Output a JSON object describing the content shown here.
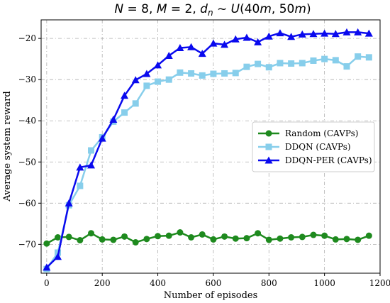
{
  "chart_data": {
    "type": "line",
    "title": "N = 8, M = 2, d_n ~ U(40m, 50m)",
    "xlabel": "Number of episodes",
    "ylabel": "Average system reward",
    "xlim": [
      -20,
      1200
    ],
    "ylim": [
      -77,
      -15.5
    ],
    "xticks": [
      0,
      200,
      400,
      600,
      800,
      1000,
      1200
    ],
    "yticks": [
      -70,
      -60,
      -50,
      -40,
      -30,
      -20
    ],
    "grid": true,
    "legend_position": "center-right",
    "x": [
      0,
      40,
      80,
      120,
      160,
      200,
      240,
      280,
      320,
      360,
      400,
      440,
      480,
      520,
      560,
      600,
      640,
      680,
      720,
      760,
      800,
      840,
      880,
      920,
      960,
      1000,
      1040,
      1080,
      1120,
      1160
    ],
    "series": [
      {
        "name": "Random (CAVPs)",
        "color": "#1e8a1e",
        "marker": "circle",
        "values": [
          -69.8,
          -68.3,
          -68.2,
          -69.0,
          -67.3,
          -68.8,
          -68.9,
          -68.1,
          -69.5,
          -68.7,
          -68.0,
          -67.9,
          -67.1,
          -68.3,
          -67.6,
          -68.8,
          -68.1,
          -68.6,
          -68.5,
          -67.3,
          -68.9,
          -68.6,
          -68.3,
          -68.2,
          -67.7,
          -67.9,
          -68.8,
          -68.7,
          -68.9,
          -67.9
        ]
      },
      {
        "name": "DDQN (CAVPs)",
        "color": "#87ceeb",
        "marker": "square",
        "values": [
          -76.0,
          -72.0,
          -60.5,
          -55.8,
          -47.2,
          -44.0,
          -40.2,
          -38.0,
          -35.8,
          -31.5,
          -30.5,
          -30.0,
          -28.3,
          -28.5,
          -29.0,
          -28.6,
          -28.5,
          -28.4,
          -26.9,
          -26.2,
          -27.0,
          -26.0,
          -26.1,
          -26.0,
          -25.4,
          -25.0,
          -25.3,
          -26.8,
          -24.4,
          -24.6
        ]
      },
      {
        "name": "DDQN-PER (CAVPs)",
        "color": "#0a0aee",
        "marker": "triangle",
        "values": [
          -75.6,
          -73.0,
          -60.0,
          -51.3,
          -50.8,
          -44.3,
          -39.7,
          -33.9,
          -30.1,
          -28.6,
          -26.5,
          -24.2,
          -22.3,
          -22.1,
          -23.7,
          -21.2,
          -21.5,
          -20.2,
          -19.8,
          -20.9,
          -19.5,
          -18.7,
          -19.6,
          -19.0,
          -18.9,
          -18.8,
          -18.9,
          -18.5,
          -18.5,
          -18.8
        ]
      }
    ]
  }
}
